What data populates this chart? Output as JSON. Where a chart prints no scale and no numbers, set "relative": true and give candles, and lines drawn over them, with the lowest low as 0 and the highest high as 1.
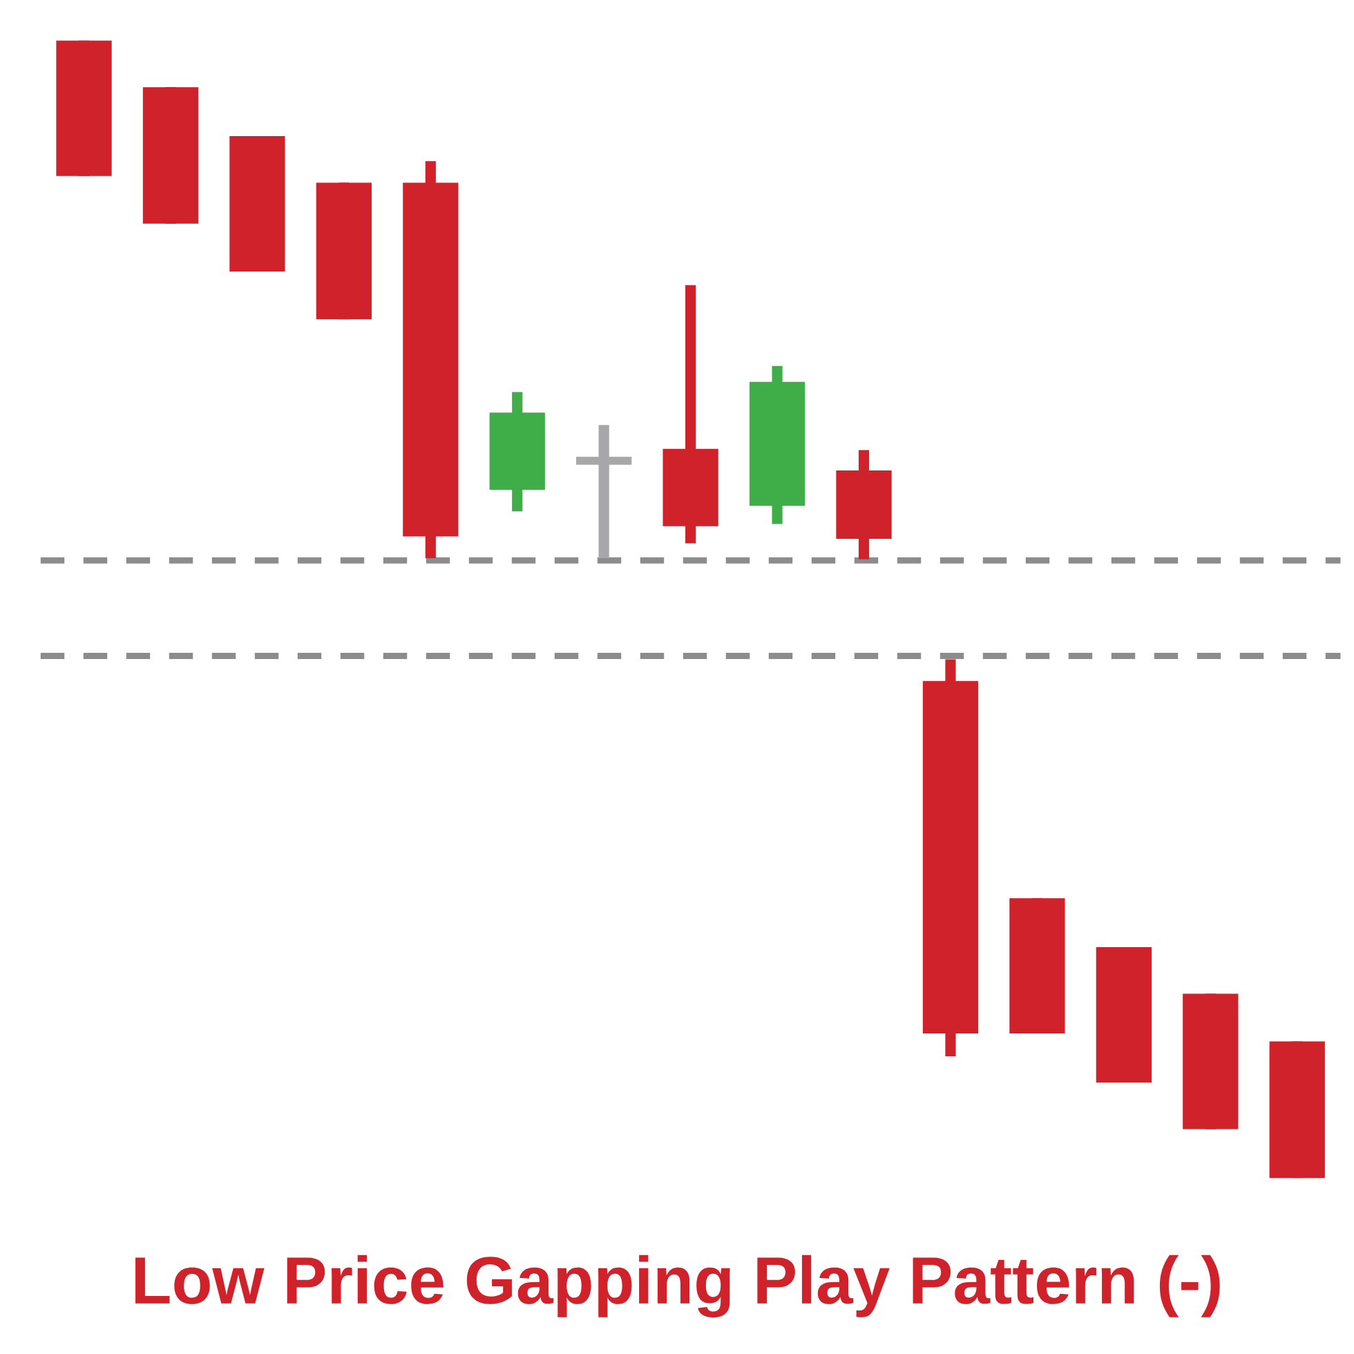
{
  "chart_data": {
    "type": "candlestick",
    "title": "Low Price Gapping Play Pattern (-)",
    "relative": true,
    "categories": [
      null,
      null,
      null,
      null,
      null,
      null,
      null,
      null,
      null,
      null,
      null,
      null,
      null,
      null,
      null
    ],
    "ohlc": [
      [
        1.0,
        1.0,
        0.881,
        0.881
      ],
      [
        0.959,
        0.959,
        0.839,
        0.839
      ],
      [
        0.916,
        0.916,
        0.797,
        0.797
      ],
      [
        0.875,
        0.875,
        0.755,
        0.755
      ],
      [
        0.875,
        0.894,
        0.545,
        0.564
      ],
      [
        0.605,
        0.691,
        0.586,
        0.673
      ],
      [
        0.634,
        0.662,
        0.545,
        0.627
      ],
      [
        0.641,
        0.785,
        0.558,
        0.573
      ],
      [
        0.591,
        0.714,
        0.575,
        0.7
      ],
      [
        0.622,
        0.64,
        0.544,
        0.562
      ],
      [
        0.437,
        0.456,
        0.107,
        0.127
      ],
      [
        0.246,
        0.246,
        0.127,
        0.127
      ],
      [
        0.203,
        0.203,
        0.084,
        0.084
      ],
      [
        0.162,
        0.162,
        0.043,
        0.043
      ],
      [
        0.12,
        0.12,
        0.0,
        0.0
      ]
    ],
    "colors": [
      "#d0222b",
      "#d0222b",
      "#d0222b",
      "#d0222b",
      "#d0222b",
      "#3fae49",
      "#a7a7a9",
      "#d0222b",
      "#3fae49",
      "#d0222b",
      "#d0222b",
      "#d0222b",
      "#d0222b",
      "#d0222b",
      "#d0222b"
    ],
    "ref_lines": [
      {
        "axis": "y",
        "value": 0.543,
        "color": "#8c8c8c",
        "line_style": "dashed"
      },
      {
        "axis": "y",
        "value": 0.459,
        "color": "#8c8c8c",
        "line_style": "dashed"
      }
    ]
  }
}
